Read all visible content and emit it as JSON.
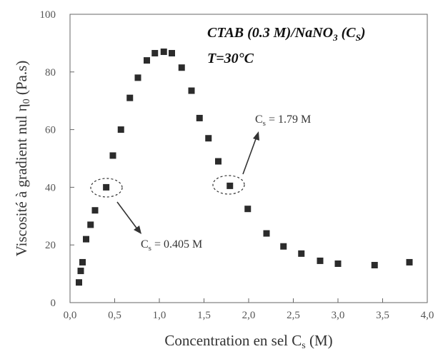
{
  "chart_data": {
    "type": "scatter",
    "xlabel": "Concentration en sel C",
    "xlabel_sub": "s",
    "xlabel_unit": " (M)",
    "ylabel": "Viscosité à gradient nul η",
    "ylabel_sub": "0",
    "ylabel_unit": " (Pa.s)",
    "xlim": [
      0.0,
      4.0
    ],
    "ylim": [
      0,
      100
    ],
    "x_ticks": [
      {
        "value": 0.0,
        "label": "0,0"
      },
      {
        "value": 0.5,
        "label": "0,5"
      },
      {
        "value": 1.0,
        "label": "1,0"
      },
      {
        "value": 1.5,
        "label": "1,5"
      },
      {
        "value": 2.0,
        "label": "2,0"
      },
      {
        "value": 2.5,
        "label": "2,5"
      },
      {
        "value": 3.0,
        "label": "3,0"
      },
      {
        "value": 3.5,
        "label": "3,5"
      },
      {
        "value": 4.0,
        "label": "4,0"
      }
    ],
    "y_ticks": [
      {
        "value": 0,
        "label": "0"
      },
      {
        "value": 20,
        "label": "20"
      },
      {
        "value": 40,
        "label": "40"
      },
      {
        "value": 60,
        "label": "60"
      },
      {
        "value": 80,
        "label": "80"
      },
      {
        "value": 100,
        "label": "100"
      }
    ],
    "grid": false,
    "marker": "square",
    "marker_color": "#2b2b2b",
    "points": [
      {
        "x": 0.1,
        "y": 7
      },
      {
        "x": 0.12,
        "y": 11
      },
      {
        "x": 0.14,
        "y": 14
      },
      {
        "x": 0.18,
        "y": 22
      },
      {
        "x": 0.23,
        "y": 27
      },
      {
        "x": 0.28,
        "y": 32
      },
      {
        "x": 0.405,
        "y": 40
      },
      {
        "x": 0.48,
        "y": 51
      },
      {
        "x": 0.57,
        "y": 60
      },
      {
        "x": 0.67,
        "y": 71
      },
      {
        "x": 0.76,
        "y": 78
      },
      {
        "x": 0.86,
        "y": 84
      },
      {
        "x": 0.95,
        "y": 86.5
      },
      {
        "x": 1.05,
        "y": 87
      },
      {
        "x": 1.14,
        "y": 86.5
      },
      {
        "x": 1.25,
        "y": 81.5
      },
      {
        "x": 1.36,
        "y": 73.5
      },
      {
        "x": 1.45,
        "y": 64
      },
      {
        "x": 1.55,
        "y": 57
      },
      {
        "x": 1.66,
        "y": 49
      },
      {
        "x": 1.79,
        "y": 40.5
      },
      {
        "x": 1.99,
        "y": 32.5
      },
      {
        "x": 2.2,
        "y": 24
      },
      {
        "x": 2.39,
        "y": 19.5
      },
      {
        "x": 2.59,
        "y": 17
      },
      {
        "x": 2.8,
        "y": 14.5
      },
      {
        "x": 3.0,
        "y": 13.5
      },
      {
        "x": 3.41,
        "y": 13
      },
      {
        "x": 3.8,
        "y": 14
      }
    ],
    "annotations": {
      "title_line1": "CTAB (0.3 M)/NaNO",
      "title_line1_sub": "3",
      "title_line1_suffix": " (C",
      "title_line1_suffix_sub": "S",
      "title_line1_end": ")",
      "title_line2": "T=30°C",
      "callouts": [
        {
          "prefix": "C",
          "sub": "s",
          "text": " = 0.405 M",
          "x": 0.405,
          "y": 40
        },
        {
          "prefix": "C",
          "sub": "s",
          "text": " = 1.79 M",
          "x": 1.79,
          "y": 40.5
        }
      ]
    }
  }
}
